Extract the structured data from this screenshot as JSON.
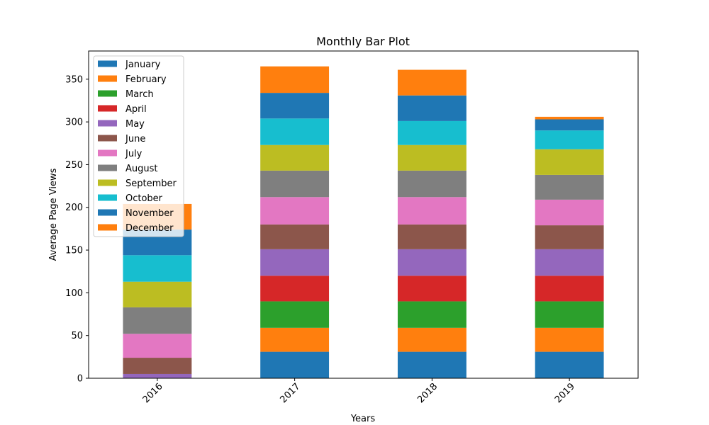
{
  "chart_data": {
    "type": "bar",
    "stacked": true,
    "title": "Monthly Bar Plot",
    "xlabel": "Years",
    "ylabel": "Average Page Views",
    "categories": [
      "2016",
      "2017",
      "2018",
      "2019"
    ],
    "ylim": [
      0,
      383
    ],
    "yticks": [
      0,
      50,
      100,
      150,
      200,
      250,
      300,
      350
    ],
    "grid": false,
    "legend_position": "top-left",
    "series": [
      {
        "name": "January",
        "color": "#1f77b4",
        "values": [
          0,
          31,
          31,
          31
        ]
      },
      {
        "name": "February",
        "color": "#ff7f0e",
        "values": [
          0,
          28,
          28,
          28
        ]
      },
      {
        "name": "March",
        "color": "#2ca02c",
        "values": [
          0,
          31,
          31,
          31
        ]
      },
      {
        "name": "April",
        "color": "#d62728",
        "values": [
          0,
          30,
          30,
          30
        ]
      },
      {
        "name": "May",
        "color": "#9467bd",
        "values": [
          5,
          31,
          31,
          31
        ]
      },
      {
        "name": "June",
        "color": "#8c564b",
        "values": [
          19,
          29,
          29,
          28
        ]
      },
      {
        "name": "July",
        "color": "#e377c2",
        "values": [
          28,
          32,
          32,
          30
        ]
      },
      {
        "name": "August",
        "color": "#7f7f7f",
        "values": [
          31,
          31,
          31,
          29
        ]
      },
      {
        "name": "September",
        "color": "#bcbd22",
        "values": [
          30,
          30,
          30,
          30
        ]
      },
      {
        "name": "October",
        "color": "#17becf",
        "values": [
          31,
          31,
          28,
          22
        ]
      },
      {
        "name": "November",
        "color": "#1f77b4",
        "values": [
          30,
          30,
          30,
          13
        ]
      },
      {
        "name": "December",
        "color": "#ff7f0e",
        "values": [
          30,
          31,
          30,
          3
        ]
      }
    ]
  }
}
